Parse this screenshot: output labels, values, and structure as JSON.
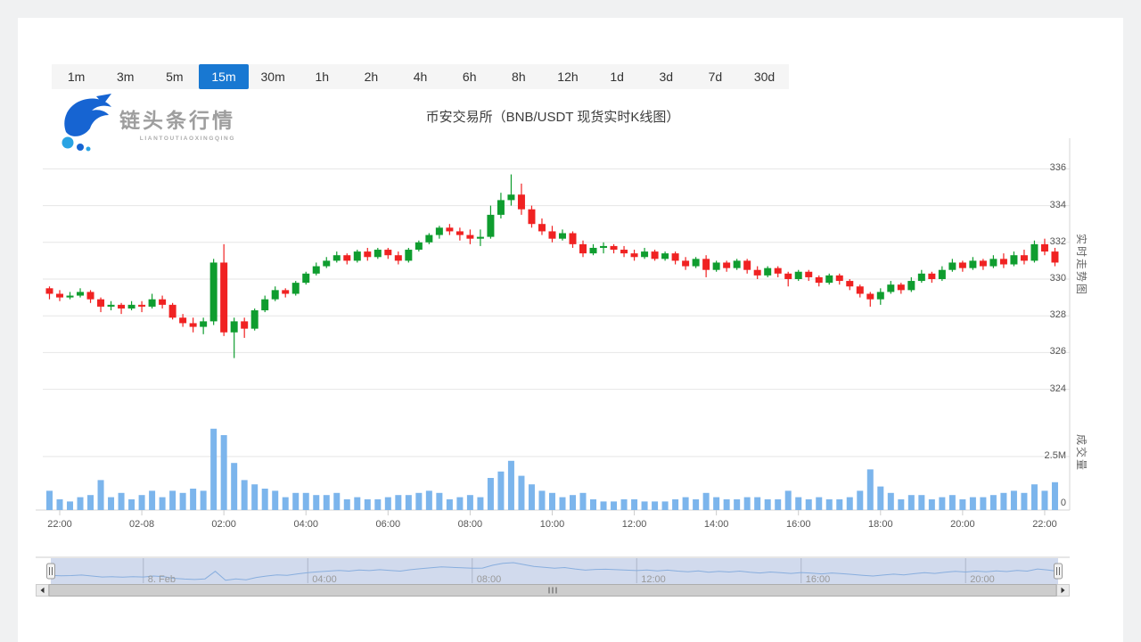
{
  "timeframe_bar": {
    "options": [
      "1m",
      "3m",
      "5m",
      "15m",
      "30m",
      "1h",
      "2h",
      "4h",
      "6h",
      "8h",
      "12h",
      "1d",
      "3d",
      "7d",
      "30d"
    ],
    "active": "15m"
  },
  "header": {
    "logo_text": "链头条行情",
    "logo_subtext": "LIANTOUTIAOXINGQING",
    "title": "币安交易所（BNB/USDT 现货实时K线图）"
  },
  "colors": {
    "up": "#0f9d2f",
    "down": "#f02222",
    "volume": "#7cb5ec",
    "active_tab": "#1878d2",
    "grid": "#e6e6e6",
    "axis_line": "#d4d4d4",
    "nav_mask": "rgba(102,133,194,0.3)",
    "nav_line": "#88aede"
  },
  "chart_data": {
    "type": "candlestick+volume",
    "title": "币安交易所（BNB/USDT 现货实时K线图）",
    "symbol": "BNB/USDT",
    "interval": "15m",
    "price_axis": {
      "title": "实时走势图",
      "ticks": [
        324,
        326,
        328,
        330,
        332,
        334,
        336
      ],
      "range": [
        323,
        337
      ]
    },
    "volume_axis": {
      "title": "成交量",
      "tick_labels": [
        "0",
        "2.5M"
      ],
      "tick_values_millions": [
        0,
        2.5
      ]
    },
    "x_ticks": [
      "22:00",
      "02-08",
      "02:00",
      "04:00",
      "06:00",
      "08:00",
      "10:00",
      "12:00",
      "14:00",
      "16:00",
      "18:00",
      "20:00",
      "22:00"
    ],
    "navigator_ticks": [
      "8. Feb",
      "04:00",
      "08:00",
      "12:00",
      "16:00",
      "20:00"
    ],
    "candle_format": [
      "time",
      "open",
      "high",
      "low",
      "close",
      "volume_millions"
    ],
    "candles": [
      [
        "21:45",
        329.5,
        329.6,
        328.9,
        329.2,
        0.9
      ],
      [
        "22:00",
        329.2,
        329.4,
        328.8,
        329.0,
        0.5
      ],
      [
        "22:15",
        329.0,
        329.3,
        328.9,
        329.1,
        0.4
      ],
      [
        "22:30",
        329.1,
        329.5,
        329.0,
        329.3,
        0.6
      ],
      [
        "22:45",
        329.3,
        329.4,
        328.7,
        328.9,
        0.7
      ],
      [
        "23:00",
        328.9,
        329.0,
        328.2,
        328.5,
        1.4
      ],
      [
        "23:15",
        328.5,
        328.8,
        328.3,
        328.6,
        0.6
      ],
      [
        "23:30",
        328.6,
        328.7,
        328.1,
        328.4,
        0.8
      ],
      [
        "23:45",
        328.4,
        328.8,
        328.3,
        328.6,
        0.5
      ],
      [
        "00:00",
        328.6,
        328.8,
        328.2,
        328.5,
        0.7
      ],
      [
        "00:15",
        328.5,
        329.2,
        328.4,
        328.9,
        0.9
      ],
      [
        "00:30",
        328.9,
        329.1,
        328.4,
        328.6,
        0.6
      ],
      [
        "00:45",
        328.6,
        328.7,
        327.8,
        327.9,
        0.9
      ],
      [
        "01:00",
        327.9,
        328.1,
        327.4,
        327.6,
        0.8
      ],
      [
        "01:15",
        327.6,
        327.9,
        327.1,
        327.4,
        1.0
      ],
      [
        "01:30",
        327.4,
        327.9,
        327.0,
        327.7,
        0.9
      ],
      [
        "01:45",
        327.7,
        331.1,
        327.5,
        330.9,
        3.8
      ],
      [
        "02:00",
        330.9,
        331.9,
        326.9,
        327.1,
        3.5
      ],
      [
        "02:15",
        327.1,
        327.9,
        325.7,
        327.7,
        2.2
      ],
      [
        "02:30",
        327.7,
        327.9,
        326.8,
        327.3,
        1.4
      ],
      [
        "02:45",
        327.3,
        328.4,
        327.2,
        328.3,
        1.2
      ],
      [
        "03:00",
        328.3,
        329.1,
        328.2,
        328.9,
        1.0
      ],
      [
        "03:15",
        328.9,
        329.6,
        328.8,
        329.4,
        0.9
      ],
      [
        "03:30",
        329.4,
        329.5,
        329.0,
        329.2,
        0.6
      ],
      [
        "03:45",
        329.2,
        329.9,
        329.1,
        329.8,
        0.8
      ],
      [
        "04:00",
        329.8,
        330.4,
        329.7,
        330.3,
        0.8
      ],
      [
        "04:15",
        330.3,
        330.9,
        330.2,
        330.7,
        0.7
      ],
      [
        "04:30",
        330.7,
        331.2,
        330.6,
        331.0,
        0.7
      ],
      [
        "04:45",
        331.0,
        331.5,
        330.9,
        331.3,
        0.8
      ],
      [
        "05:00",
        331.3,
        331.4,
        330.8,
        331.0,
        0.5
      ],
      [
        "05:15",
        331.0,
        331.6,
        330.9,
        331.5,
        0.6
      ],
      [
        "05:30",
        331.5,
        331.7,
        331.0,
        331.2,
        0.5
      ],
      [
        "05:45",
        331.2,
        331.7,
        331.1,
        331.6,
        0.5
      ],
      [
        "06:00",
        331.6,
        331.7,
        331.1,
        331.3,
        0.6
      ],
      [
        "06:15",
        331.3,
        331.5,
        330.8,
        331.0,
        0.7
      ],
      [
        "06:30",
        331.0,
        331.7,
        330.9,
        331.6,
        0.7
      ],
      [
        "06:45",
        331.6,
        332.1,
        331.5,
        332.0,
        0.8
      ],
      [
        "07:00",
        332.0,
        332.5,
        331.9,
        332.4,
        0.9
      ],
      [
        "07:15",
        332.4,
        332.9,
        332.2,
        332.8,
        0.8
      ],
      [
        "07:30",
        332.8,
        333.0,
        332.4,
        332.6,
        0.5
      ],
      [
        "07:45",
        332.6,
        332.8,
        332.1,
        332.4,
        0.6
      ],
      [
        "08:00",
        332.4,
        332.7,
        331.9,
        332.2,
        0.7
      ],
      [
        "08:15",
        332.2,
        332.7,
        331.8,
        332.3,
        0.6
      ],
      [
        "08:30",
        332.3,
        334.0,
        332.2,
        333.5,
        1.5
      ],
      [
        "08:45",
        333.5,
        334.7,
        333.3,
        334.3,
        1.8
      ],
      [
        "09:00",
        334.3,
        335.7,
        334.0,
        334.6,
        2.3
      ],
      [
        "09:15",
        334.6,
        335.2,
        333.5,
        333.8,
        1.6
      ],
      [
        "09:30",
        333.8,
        334.0,
        332.8,
        333.0,
        1.2
      ],
      [
        "09:45",
        333.0,
        333.3,
        332.4,
        332.6,
        0.9
      ],
      [
        "10:00",
        332.6,
        332.9,
        332.0,
        332.2,
        0.8
      ],
      [
        "10:15",
        332.2,
        332.7,
        332.1,
        332.5,
        0.6
      ],
      [
        "10:30",
        332.5,
        332.6,
        331.7,
        331.9,
        0.7
      ],
      [
        "10:45",
        331.9,
        332.1,
        331.2,
        331.4,
        0.8
      ],
      [
        "11:00",
        331.4,
        331.9,
        331.3,
        331.7,
        0.5
      ],
      [
        "11:15",
        331.7,
        332.0,
        331.4,
        331.8,
        0.4
      ],
      [
        "11:30",
        331.8,
        331.9,
        331.4,
        331.6,
        0.4
      ],
      [
        "11:45",
        331.6,
        331.8,
        331.2,
        331.4,
        0.5
      ],
      [
        "12:00",
        331.4,
        331.6,
        331.0,
        331.2,
        0.5
      ],
      [
        "12:15",
        331.2,
        331.7,
        331.1,
        331.5,
        0.4
      ],
      [
        "12:30",
        331.5,
        331.6,
        331.0,
        331.1,
        0.4
      ],
      [
        "12:45",
        331.1,
        331.5,
        331.0,
        331.4,
        0.4
      ],
      [
        "13:00",
        331.4,
        331.5,
        330.8,
        331.0,
        0.5
      ],
      [
        "13:15",
        331.0,
        331.2,
        330.5,
        330.7,
        0.6
      ],
      [
        "13:30",
        330.7,
        331.2,
        330.6,
        331.1,
        0.5
      ],
      [
        "13:45",
        331.1,
        331.3,
        330.1,
        330.5,
        0.8
      ],
      [
        "14:00",
        330.5,
        331.0,
        330.4,
        330.9,
        0.6
      ],
      [
        "14:15",
        330.9,
        331.0,
        330.4,
        330.6,
        0.5
      ],
      [
        "14:30",
        330.6,
        331.1,
        330.5,
        331.0,
        0.5
      ],
      [
        "14:45",
        331.0,
        331.1,
        330.3,
        330.5,
        0.6
      ],
      [
        "15:00",
        330.5,
        330.7,
        330.0,
        330.2,
        0.6
      ],
      [
        "15:15",
        330.2,
        330.7,
        330.1,
        330.6,
        0.5
      ],
      [
        "15:30",
        330.6,
        330.7,
        330.1,
        330.3,
        0.5
      ],
      [
        "15:45",
        330.3,
        330.4,
        329.6,
        330.0,
        0.9
      ],
      [
        "16:00",
        330.0,
        330.5,
        329.9,
        330.4,
        0.6
      ],
      [
        "16:15",
        330.4,
        330.5,
        329.9,
        330.1,
        0.5
      ],
      [
        "16:30",
        330.1,
        330.2,
        329.6,
        329.8,
        0.6
      ],
      [
        "16:45",
        329.8,
        330.3,
        329.7,
        330.2,
        0.5
      ],
      [
        "17:00",
        330.2,
        330.3,
        329.7,
        329.9,
        0.5
      ],
      [
        "17:15",
        329.9,
        330.0,
        329.4,
        329.6,
        0.6
      ],
      [
        "17:30",
        329.6,
        329.7,
        329.0,
        329.2,
        0.9
      ],
      [
        "17:45",
        329.2,
        329.3,
        328.5,
        328.9,
        1.9
      ],
      [
        "18:00",
        328.9,
        329.5,
        328.6,
        329.3,
        1.1
      ],
      [
        "18:15",
        329.3,
        329.9,
        329.2,
        329.7,
        0.8
      ],
      [
        "18:30",
        329.7,
        329.8,
        329.2,
        329.4,
        0.5
      ],
      [
        "18:45",
        329.4,
        330.1,
        329.3,
        329.9,
        0.7
      ],
      [
        "19:00",
        329.9,
        330.5,
        329.8,
        330.3,
        0.7
      ],
      [
        "19:15",
        330.3,
        330.4,
        329.8,
        330.0,
        0.5
      ],
      [
        "19:30",
        330.0,
        330.7,
        329.9,
        330.5,
        0.6
      ],
      [
        "19:45",
        330.5,
        331.1,
        330.4,
        330.9,
        0.7
      ],
      [
        "20:00",
        330.9,
        331.0,
        330.4,
        330.6,
        0.5
      ],
      [
        "20:15",
        330.6,
        331.2,
        330.5,
        331.0,
        0.6
      ],
      [
        "20:30",
        331.0,
        331.1,
        330.5,
        330.7,
        0.6
      ],
      [
        "20:45",
        330.7,
        331.3,
        330.6,
        331.1,
        0.7
      ],
      [
        "21:00",
        331.1,
        331.4,
        330.6,
        330.8,
        0.8
      ],
      [
        "21:15",
        330.8,
        331.5,
        330.7,
        331.3,
        0.9
      ],
      [
        "21:30",
        331.3,
        331.6,
        330.8,
        331.0,
        0.8
      ],
      [
        "21:45",
        331.0,
        332.1,
        330.9,
        331.9,
        1.2
      ],
      [
        "22:00",
        331.9,
        332.2,
        331.3,
        331.5,
        0.9
      ],
      [
        "22:15",
        331.5,
        331.7,
        330.7,
        330.9,
        1.3
      ]
    ]
  }
}
